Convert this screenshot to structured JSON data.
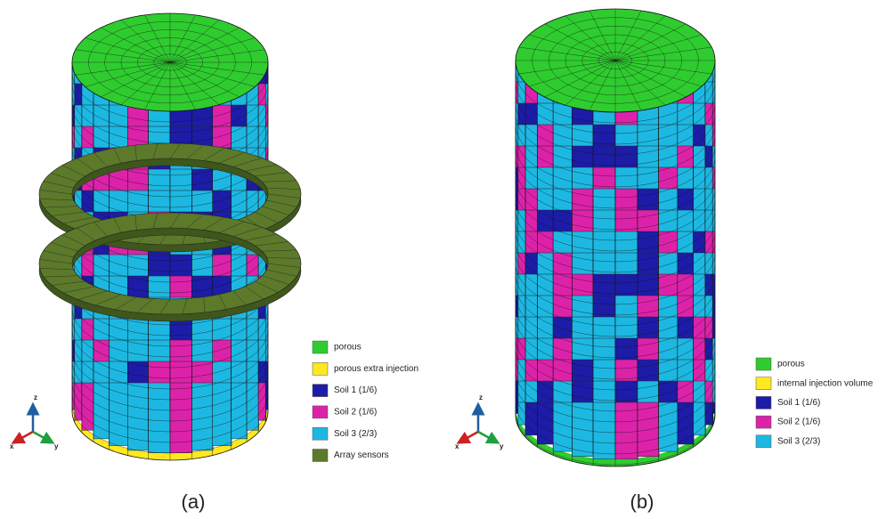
{
  "panels": [
    {
      "caption": "(a)",
      "axes": {
        "x": "x",
        "y": "y",
        "z": "z"
      },
      "legend": [
        {
          "label": "porous",
          "color": "#2fcc2f"
        },
        {
          "label": "porous extra injection",
          "color": "#ffe81f"
        },
        {
          "label": "Soil 1 (1/6)",
          "color": "#1c1ca8"
        },
        {
          "label": "Soil 2 (1/6)",
          "color": "#dd22aa"
        },
        {
          "label": "Soil 3 (2/3)",
          "color": "#1cb8e2"
        },
        {
          "label": "Array sensors",
          "color": "#5c7a2a"
        }
      ]
    },
    {
      "caption": "(b)",
      "axes": {
        "x": "x",
        "y": "y",
        "z": "z"
      },
      "legend": [
        {
          "label": "porous",
          "color": "#2fcc2f"
        },
        {
          "label": "internal injection volume",
          "color": "#ffe81f"
        },
        {
          "label": "Soil 1 (1/6)",
          "color": "#1c1ca8"
        },
        {
          "label": "Soil 2 (1/6)",
          "color": "#dd22aa"
        },
        {
          "label": "Soil 3 (2/3)",
          "color": "#1cb8e2"
        }
      ]
    }
  ]
}
